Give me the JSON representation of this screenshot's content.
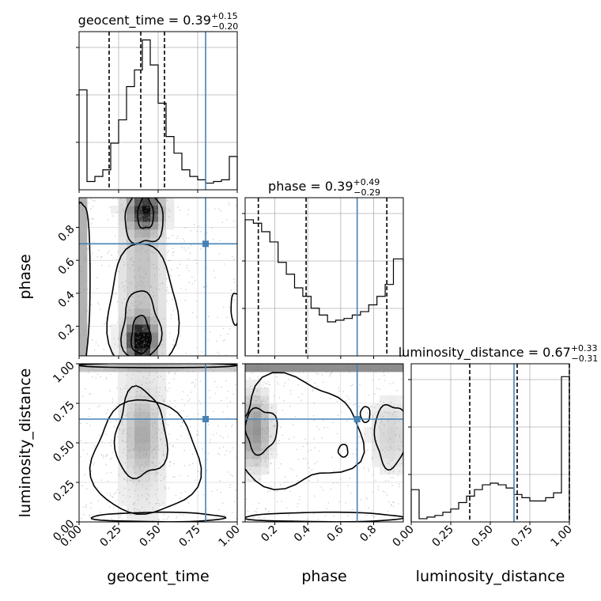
{
  "chart_data": {
    "type": "corner",
    "parameters": [
      "geocent_time",
      "phase",
      "luminosity_distance"
    ],
    "ranges": {
      "geocent_time": [
        0,
        1
      ],
      "phase": [
        0.02,
        0.98
      ],
      "luminosity_distance": [
        0,
        1
      ]
    },
    "truth": {
      "geocent_time": 0.8,
      "phase": 0.7,
      "luminosity_distance": 0.65
    },
    "truth_color": "#4682b4",
    "marginals": [
      {
        "param": "geocent_time",
        "title_name": "geocent_time = ",
        "title_value": "0.39",
        "err_plus": "+0.15",
        "err_minus": "−0.20",
        "quantiles": [
          0.19,
          0.39,
          0.54
        ],
        "bin_edges": [
          0,
          0.05,
          0.1,
          0.15,
          0.2,
          0.25,
          0.3,
          0.35,
          0.4,
          0.45,
          0.5,
          0.55,
          0.6,
          0.65,
          0.7,
          0.75,
          0.8,
          0.85,
          0.9,
          0.95,
          1.0
        ],
        "counts": [
          0.6,
          0.05,
          0.08,
          0.12,
          0.28,
          0.42,
          0.62,
          0.72,
          0.9,
          0.75,
          0.52,
          0.32,
          0.22,
          0.12,
          0.08,
          0.06,
          0.04,
          0.05,
          0.06,
          0.2
        ],
        "ymax": 0.95
      },
      {
        "param": "phase",
        "title_name": "phase = ",
        "title_value": "0.39",
        "err_plus": "+0.49",
        "err_minus": "−0.29",
        "quantiles": [
          0.1,
          0.39,
          0.88
        ],
        "bin_edges": [
          0.02,
          0.07,
          0.12,
          0.17,
          0.22,
          0.27,
          0.32,
          0.37,
          0.42,
          0.47,
          0.52,
          0.57,
          0.62,
          0.67,
          0.72,
          0.77,
          0.82,
          0.87,
          0.92,
          0.98
        ],
        "counts": [
          0.8,
          0.78,
          0.73,
          0.67,
          0.55,
          0.48,
          0.4,
          0.35,
          0.28,
          0.24,
          0.2,
          0.21,
          0.22,
          0.24,
          0.26,
          0.3,
          0.35,
          0.42,
          0.57
        ],
        "ymax": 0.93
      },
      {
        "param": "luminosity_distance",
        "title_name": "luminosity_distance = ",
        "title_value": "0.67",
        "err_plus": "+0.33",
        "err_minus": "−0.31",
        "quantiles": [
          0.37,
          0.67,
          1.0
        ],
        "bin_edges": [
          0,
          0.05,
          0.1,
          0.15,
          0.2,
          0.25,
          0.3,
          0.35,
          0.4,
          0.45,
          0.5,
          0.55,
          0.6,
          0.65,
          0.7,
          0.75,
          0.8,
          0.85,
          0.9,
          0.95,
          1.0
        ],
        "counts": [
          0.2,
          0.02,
          0.03,
          0.04,
          0.06,
          0.08,
          0.12,
          0.16,
          0.2,
          0.23,
          0.24,
          0.23,
          0.21,
          0.17,
          0.15,
          0.13,
          0.13,
          0.15,
          0.18,
          0.9
        ],
        "ymax": 0.98
      }
    ],
    "axes": {
      "x": {
        "geocent_time": [
          "0.00",
          "0.25",
          "0.50",
          "0.75",
          "1.00"
        ],
        "phase": [
          "0.2",
          "0.4",
          "0.6",
          "0.8"
        ],
        "luminosity_distance": [
          "0.00",
          "0.25",
          "0.50",
          "0.75",
          "1.00"
        ]
      },
      "y": {
        "phase": [
          "0.2",
          "0.4",
          "0.6",
          "0.8"
        ],
        "luminosity_distance": [
          "0.00",
          "0.25",
          "0.50",
          "0.75",
          "1.00"
        ]
      },
      "x_ticks": {
        "geocent_time": [
          0,
          0.25,
          0.5,
          0.75,
          1.0
        ],
        "phase": [
          0.2,
          0.4,
          0.6,
          0.8
        ],
        "luminosity_distance": [
          0,
          0.25,
          0.5,
          0.75,
          1.0
        ]
      },
      "y_ticks": {
        "phase": [
          0.2,
          0.4,
          0.6,
          0.8
        ],
        "luminosity_distance": [
          0,
          0.25,
          0.5,
          0.75,
          1.0
        ]
      }
    },
    "xlabels": [
      "geocent_time",
      "phase",
      "luminosity_distance"
    ],
    "ylabels": [
      "phase",
      "luminosity_distance"
    ],
    "grid": true
  }
}
